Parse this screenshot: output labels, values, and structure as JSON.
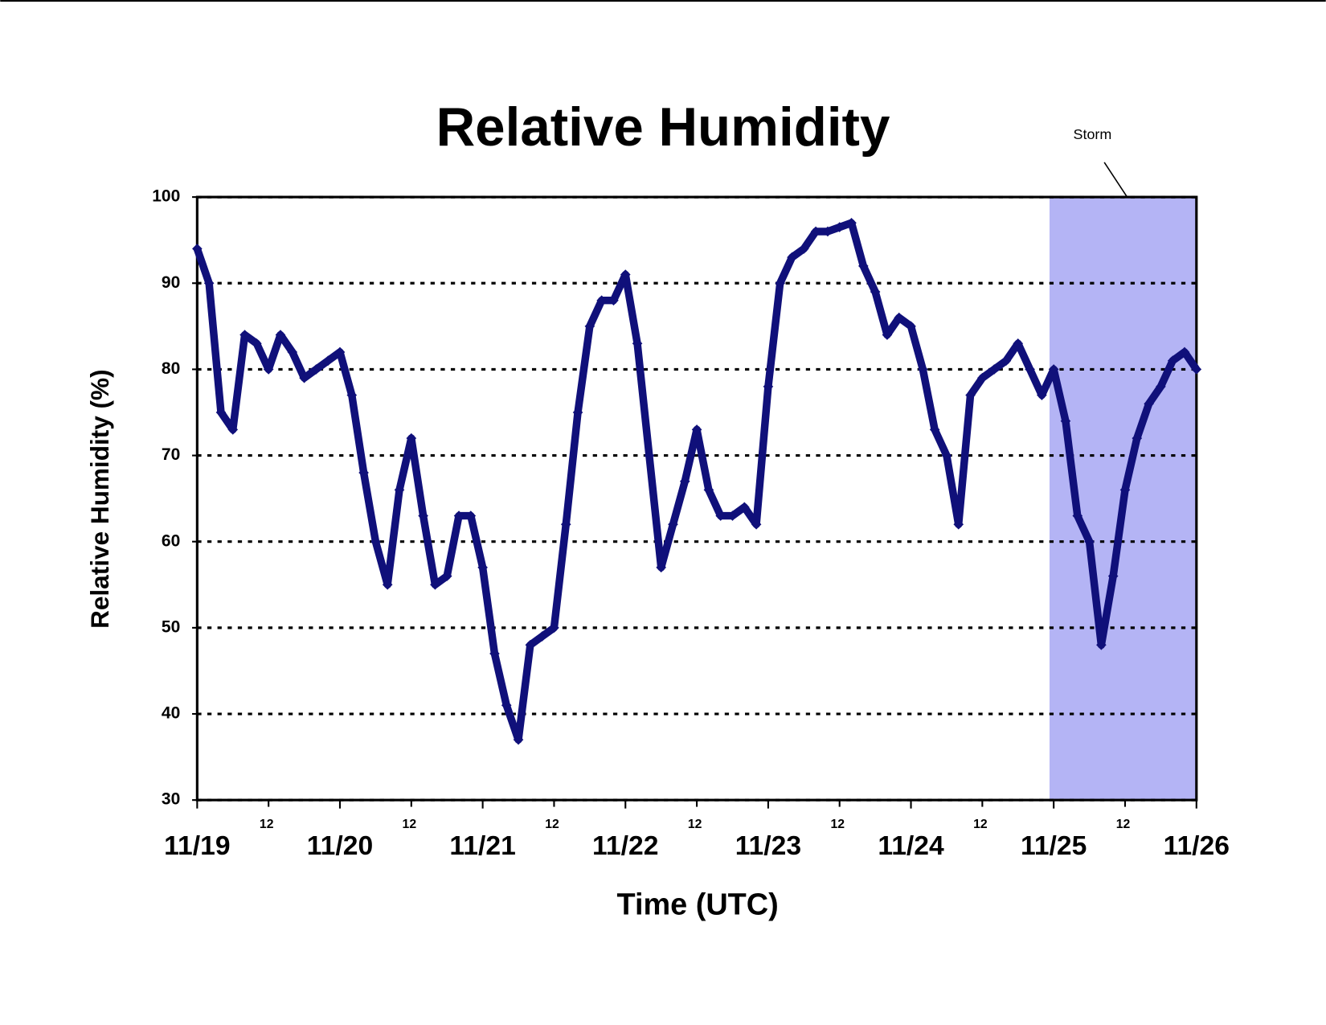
{
  "chart_data": {
    "type": "scatter",
    "title": "Relative Humidity",
    "x_label": "Time (UTC)",
    "y_label": "Relative Humidity (%)",
    "xlim": [
      0,
      168
    ],
    "ylim": [
      30,
      100
    ],
    "yticks": [
      30,
      40,
      50,
      60,
      70,
      80,
      90,
      100
    ],
    "xticks": [
      {
        "value": 0,
        "label": "11/19"
      },
      {
        "value": 24,
        "label": "11/20"
      },
      {
        "value": 48,
        "label": "11/21"
      },
      {
        "value": 72,
        "label": "11/22"
      },
      {
        "value": 96,
        "label": "11/23"
      },
      {
        "value": 120,
        "label": "11/24"
      },
      {
        "value": 144,
        "label": "11/25"
      },
      {
        "value": 168,
        "label": "11/26"
      }
    ],
    "xticks_minor": [
      {
        "value": 12,
        "label": "12"
      },
      {
        "value": 36,
        "label": "12"
      },
      {
        "value": 60,
        "label": "12"
      },
      {
        "value": 84,
        "label": "12"
      },
      {
        "value": 108,
        "label": "12"
      },
      {
        "value": 132,
        "label": "12"
      },
      {
        "value": 156,
        "label": "12"
      }
    ],
    "grid": true,
    "shaded_region": {
      "label": "Storm",
      "xlim": [
        143.3,
        168
      ],
      "color": "#b4b4f5"
    },
    "series": [
      {
        "name": "Relative Humidity",
        "color": "#10107a",
        "x": [
          0,
          2,
          4,
          6,
          8,
          10,
          12,
          14,
          16,
          18,
          20,
          22,
          24,
          26,
          28,
          30,
          32,
          34,
          36,
          38,
          40,
          42,
          44,
          46,
          48,
          50,
          52,
          54,
          56,
          58,
          60,
          62,
          64,
          66,
          68,
          70,
          72,
          74,
          76,
          78,
          80,
          82,
          84,
          86,
          88,
          90,
          92,
          94,
          96,
          98,
          100,
          102,
          104,
          106,
          108,
          110,
          112,
          114,
          116,
          118,
          120,
          122,
          124,
          126,
          128,
          130,
          132,
          134,
          136,
          138,
          140,
          142,
          144,
          146,
          148,
          150,
          152,
          154,
          156,
          158,
          160,
          162,
          164,
          166,
          168
        ],
        "values": [
          94,
          90,
          75,
          73,
          84,
          83,
          80,
          84,
          82,
          79,
          80,
          81,
          82,
          77,
          68,
          60,
          55,
          66,
          72,
          63,
          55,
          56,
          63,
          63,
          57,
          47,
          41,
          37,
          48,
          49,
          50,
          62,
          75,
          85,
          88,
          88,
          91,
          83,
          70,
          57,
          62,
          67,
          73,
          66,
          63,
          63,
          64,
          62,
          78,
          90,
          93,
          94,
          96,
          96,
          96.5,
          97,
          92,
          89,
          84,
          86,
          85,
          80,
          73,
          70,
          62,
          77,
          79,
          80,
          81,
          83,
          80,
          77,
          80,
          74,
          63,
          60,
          48,
          56,
          66,
          72,
          76,
          78,
          81,
          82,
          80
        ]
      }
    ]
  }
}
